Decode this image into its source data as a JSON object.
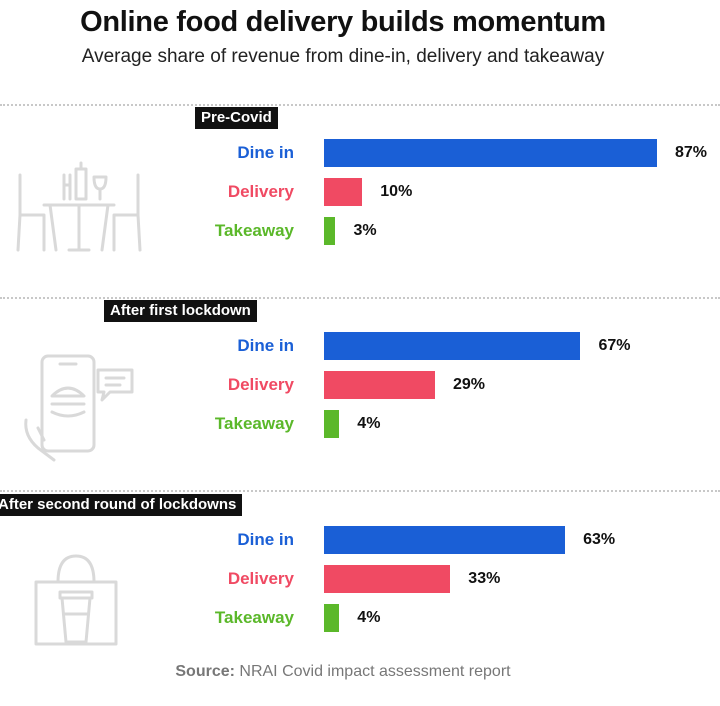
{
  "title": "Online food delivery builds momentum",
  "subtitle": "Average share of revenue from dine-in, delivery and takeaway",
  "source_label": "Source:",
  "source_text": " NRAI Covid impact assessment report",
  "colors": {
    "dine_in": "#1a5fd6",
    "delivery": "#f04a63",
    "takeaway": "#5bb82a"
  },
  "chart_data": {
    "type": "bar",
    "orientation": "horizontal",
    "categories": [
      "Dine in",
      "Delivery",
      "Takeaway"
    ],
    "unit": "%",
    "groups": [
      {
        "name": "Pre-Covid",
        "icon": "restaurant-table-icon",
        "values": [
          87,
          10,
          3
        ],
        "labels": [
          "87%",
          "10%",
          "3%"
        ]
      },
      {
        "name": "After first lockdown",
        "icon": "phone-order-icon",
        "values": [
          67,
          29,
          4
        ],
        "labels": [
          "67%",
          "29%",
          "4%"
        ]
      },
      {
        "name": "After second round of lockdowns",
        "icon": "takeaway-bag-icon",
        "values": [
          63,
          33,
          4
        ],
        "labels": [
          "63%",
          "33%",
          "4%"
        ]
      }
    ],
    "xlim": [
      0,
      100
    ]
  }
}
